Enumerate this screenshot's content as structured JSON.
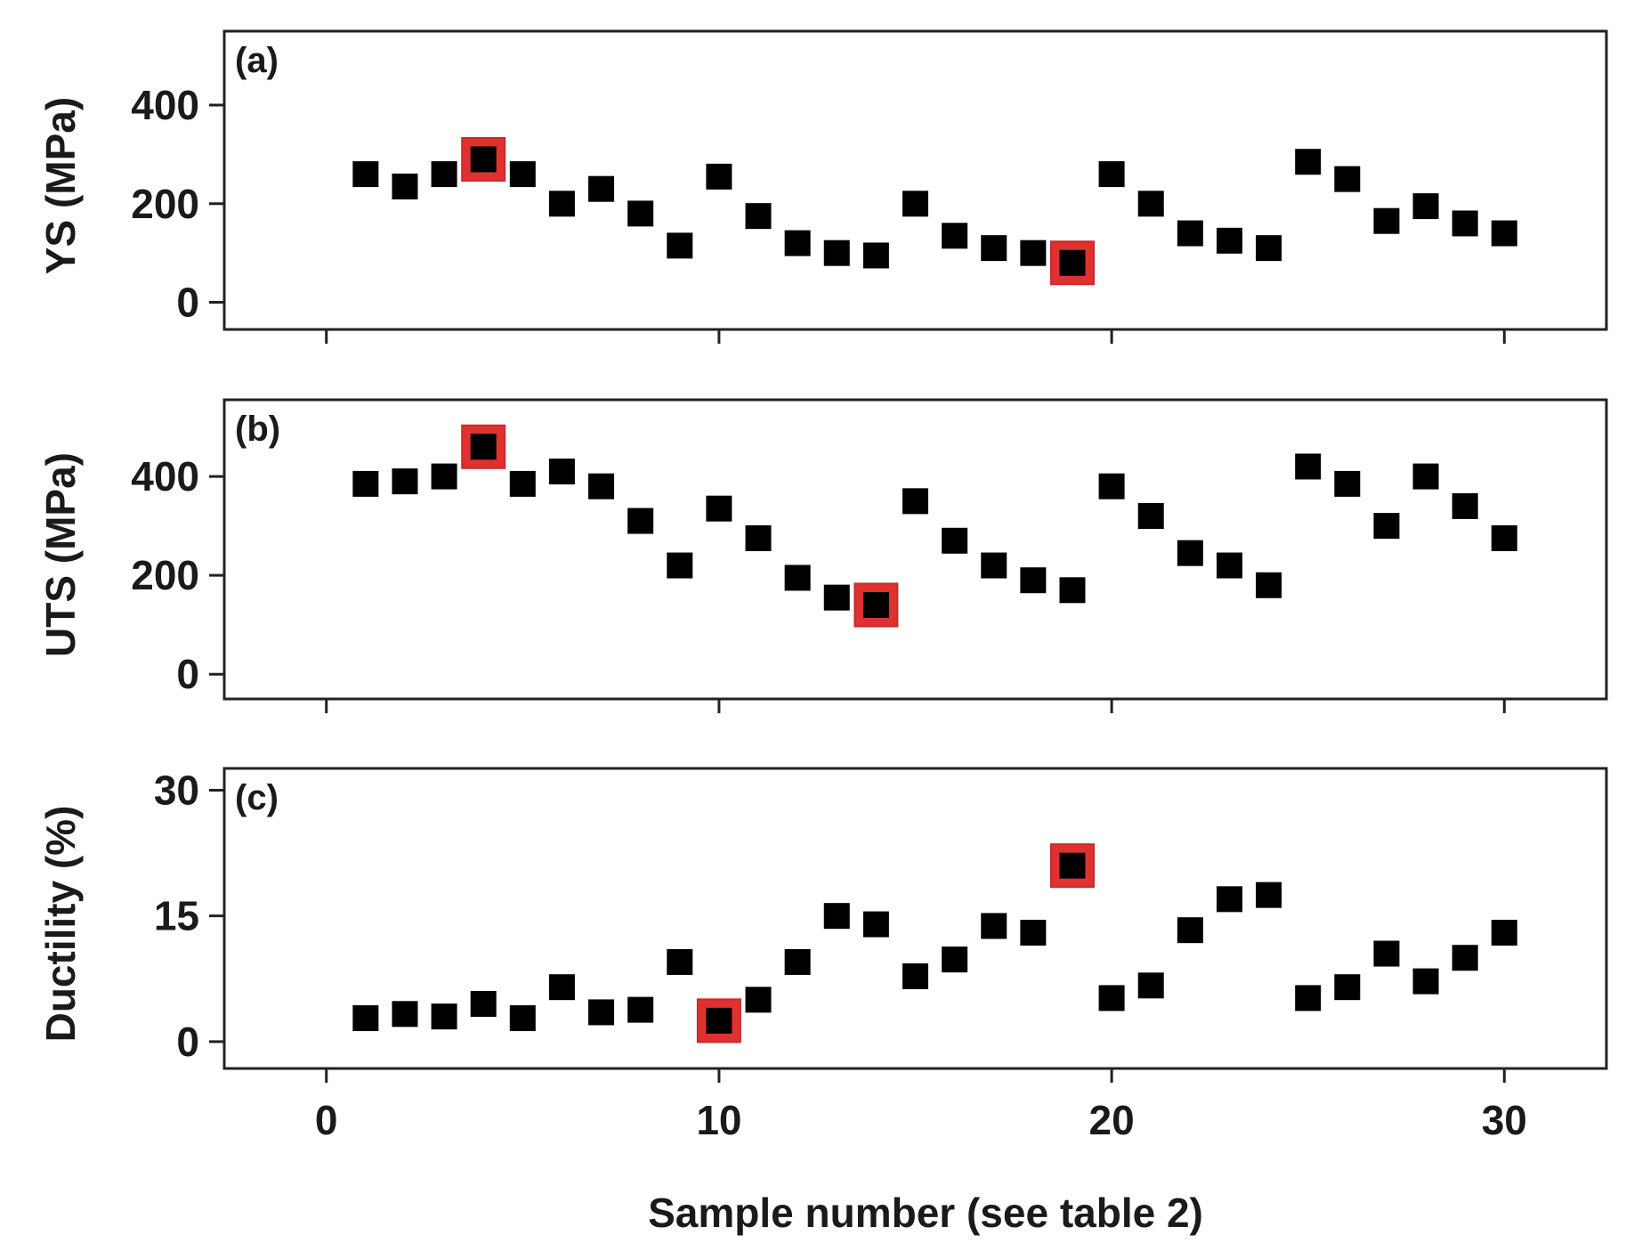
{
  "chart_data": {
    "type": "scatter",
    "xlabel": "Sample number (see table 2)",
    "xlim": [
      -2.6,
      32.6
    ],
    "xticks": [
      0,
      10,
      20,
      30
    ],
    "marker_color": "#000000",
    "highlight_color": "#e03131",
    "x": [
      1,
      2,
      3,
      4,
      5,
      6,
      7,
      8,
      9,
      10,
      11,
      12,
      13,
      14,
      15,
      16,
      17,
      18,
      19,
      20,
      21,
      22,
      23,
      24,
      25,
      26,
      27,
      28,
      29,
      30
    ],
    "panels": [
      {
        "label": "(a)",
        "ylabel": "YS (MPa)",
        "ylim": [
          -55,
          550
        ],
        "yticks": [
          0,
          200,
          400
        ],
        "values": [
          260,
          235,
          260,
          290,
          260,
          200,
          230,
          180,
          115,
          255,
          175,
          120,
          100,
          95,
          200,
          135,
          110,
          100,
          80,
          260,
          200,
          140,
          125,
          110,
          285,
          250,
          165,
          195,
          160,
          140
        ],
        "highlighted_x": [
          4,
          19
        ]
      },
      {
        "label": "(b)",
        "ylabel": "UTS (MPa)",
        "ylim": [
          -50,
          555
        ],
        "yticks": [
          0,
          200,
          400
        ],
        "values": [
          385,
          390,
          400,
          460,
          385,
          410,
          380,
          310,
          220,
          335,
          275,
          195,
          155,
          140,
          350,
          270,
          220,
          190,
          170,
          380,
          320,
          245,
          220,
          180,
          420,
          385,
          300,
          400,
          340,
          275
        ],
        "highlighted_x": [
          4,
          14
        ]
      },
      {
        "label": "(c)",
        "ylabel": "Ductility (%)",
        "ylim": [
          -3.2,
          32.6
        ],
        "yticks": [
          0,
          15,
          30
        ],
        "values": [
          2.8,
          3.3,
          3.0,
          4.5,
          2.8,
          6.5,
          3.5,
          3.8,
          9.5,
          2.5,
          5.0,
          9.5,
          15.0,
          14.0,
          7.8,
          9.8,
          13.8,
          13.0,
          21.0,
          5.2,
          6.7,
          13.3,
          17.0,
          17.5,
          5.2,
          6.5,
          10.5,
          7.2,
          10.0,
          13.0
        ],
        "highlighted_x": [
          10,
          19
        ]
      }
    ]
  }
}
